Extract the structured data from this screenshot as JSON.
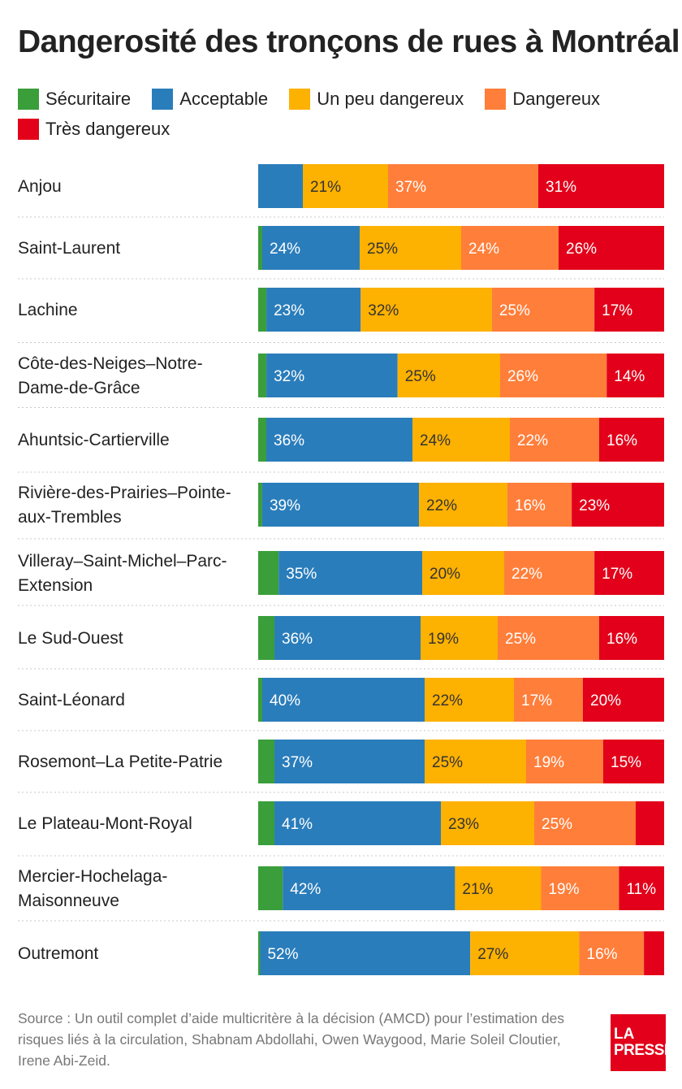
{
  "title": "Dangerosité des tronçons de rues à Montréal",
  "legend": [
    {
      "name": "Sécuritaire",
      "color": "#3a9e3a"
    },
    {
      "name": "Acceptable",
      "color": "#2a7dbb"
    },
    {
      "name": "Un peu dangereux",
      "color": "#fdb100"
    },
    {
      "name": "Dangereux",
      "color": "#ff7e3a"
    },
    {
      "name": "Très dangereux",
      "color": "#e2001a"
    }
  ],
  "chart_data": {
    "type": "bar",
    "orientation": "horizontal",
    "stacked": true,
    "percent": true,
    "legend_position": "top-left",
    "grid": false,
    "categories": [
      [
        "Anjou"
      ],
      [
        "Saint-Laurent"
      ],
      [
        "Lachine"
      ],
      [
        "Côte-des-Neiges–Notre-",
        "Dame-de-Grâce"
      ],
      [
        "Ahuntsic-Cartierville"
      ],
      [
        "Rivière-des-Prairies–Pointe-",
        "aux-Trembles"
      ],
      [
        "Villeray–Saint-Michel–Parc-",
        "Extension"
      ],
      [
        "Le Sud-Ouest"
      ],
      [
        "Saint-Léonard"
      ],
      [
        "Rosemont–La Petite-Patrie"
      ],
      [
        "Le Plateau-Mont-Royal"
      ],
      [
        "Mercier-Hochelaga-",
        "Maisonneuve"
      ],
      [
        "Outremont"
      ]
    ],
    "series": [
      {
        "name": "Sécuritaire",
        "color": "#3a9e3a",
        "values": [
          0,
          1,
          2,
          2,
          2,
          1,
          5,
          4,
          1,
          4,
          4,
          6,
          0.5
        ]
      },
      {
        "name": "Acceptable",
        "color": "#2a7dbb",
        "values": [
          11,
          24,
          23,
          32,
          36,
          39,
          35,
          36,
          40,
          37,
          41,
          42,
          52
        ]
      },
      {
        "name": "Un peu dangereux",
        "color": "#fdb100",
        "values": [
          21,
          25,
          32,
          25,
          24,
          22,
          20,
          19,
          22,
          25,
          23,
          21,
          27
        ]
      },
      {
        "name": "Dangereux",
        "color": "#ff7e3a",
        "values": [
          37,
          24,
          25,
          26,
          22,
          16,
          22,
          25,
          17,
          19,
          25,
          19,
          16
        ]
      },
      {
        "name": "Très dangereux",
        "color": "#e2001a",
        "values": [
          31,
          26,
          17,
          14,
          16,
          23,
          17,
          16,
          20,
          15,
          7,
          11,
          5
        ]
      }
    ],
    "data_labels": [
      [
        "",
        "",
        "21%",
        "37%",
        "31%"
      ],
      [
        "",
        "24%",
        "25%",
        "24%",
        "26%"
      ],
      [
        "",
        "23%",
        "32%",
        "25%",
        "17%"
      ],
      [
        "",
        "32%",
        "25%",
        "26%",
        "14%"
      ],
      [
        "",
        "36%",
        "24%",
        "22%",
        "16%"
      ],
      [
        "",
        "39%",
        "22%",
        "16%",
        "23%"
      ],
      [
        "",
        "35%",
        "20%",
        "22%",
        "17%"
      ],
      [
        "",
        "36%",
        "19%",
        "25%",
        "16%"
      ],
      [
        "",
        "40%",
        "22%",
        "17%",
        "20%"
      ],
      [
        "",
        "37%",
        "25%",
        "19%",
        "15%"
      ],
      [
        "",
        "41%",
        "23%",
        "25%",
        ""
      ],
      [
        "",
        "42%",
        "21%",
        "19%",
        "11%"
      ],
      [
        "",
        "52%",
        "27%",
        "16%",
        ""
      ]
    ],
    "xlim": [
      0,
      100
    ]
  },
  "source": "Source : Un outil complet d’aide multicritère à la décision (AMCD) pour l’estimation des risques liés à la circulation, Shabnam Abdollahi, Owen Waygood, Marie Soleil Cloutier, Irene Abi-Zeid.",
  "logo": {
    "line1": "LA",
    "line2": "PRESSE"
  }
}
